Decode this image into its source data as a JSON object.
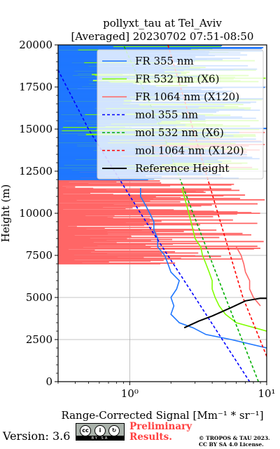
{
  "chart_data": {
    "type": "line",
    "title": "pollyxt_tau at Tel_Aviv",
    "subtitle": "[Averaged] 20230702 07:51-08:50",
    "xlabel": "Range-Corrected Signal [Mm⁻¹ * sr⁻¹]",
    "ylabel": "Height (m)",
    "xscale": "log",
    "xlim": [
      0.3,
      10
    ],
    "ylim": [
      0,
      20000
    ],
    "xticks": [
      {
        "value": 1,
        "label": "10⁰"
      },
      {
        "value": 10,
        "label": "10¹"
      }
    ],
    "yticks": [
      0,
      2500,
      5000,
      7500,
      10000,
      12500,
      15000,
      17500,
      20000
    ],
    "ytick_labels": [
      "0",
      "2500",
      "5000",
      "7500",
      "10000",
      "12500",
      "15000",
      "17500",
      "20000"
    ],
    "grid": true,
    "legend_position": "upper right",
    "series": [
      {
        "name": "FR 355 nm",
        "color": "#1f77ff",
        "style": "solid",
        "x": [
          10.0,
          5.5,
          3.6,
          2.9,
          2.3,
          2.0,
          2.1,
          2.0,
          2.2,
          2.3,
          2.0,
          1.9,
          1.8,
          1.6,
          1.6,
          1.5,
          1.5,
          1.4,
          1.3,
          1.2,
          1.2
        ],
        "y": [
          2000,
          2500,
          2800,
          3200,
          3500,
          4000,
          4500,
          5000,
          5500,
          6000,
          6500,
          7000,
          7500,
          8000,
          8500,
          9000,
          9500,
          10000,
          10500,
          11000,
          11500
        ]
      },
      {
        "name": "FR 532 nm (X6)",
        "color": "#80ff00",
        "style": "solid",
        "x": [
          10.0,
          6.0,
          5.0,
          4.5,
          4.2,
          4.0,
          4.0,
          3.8,
          3.6,
          3.4,
          3.3,
          3.0,
          2.9,
          2.8,
          2.7,
          2.6,
          2.5,
          2.4
        ],
        "y": [
          3000,
          3500,
          4000,
          4500,
          5000,
          5500,
          6000,
          6500,
          7000,
          7500,
          8000,
          8500,
          9000,
          9500,
          10000,
          10500,
          11000,
          11500
        ]
      },
      {
        "name": "FR 1064 nm (X120)",
        "color": "#ff6666",
        "style": "solid",
        "x": [
          9.0,
          8.0,
          7.5,
          7.5,
          7.0,
          6.8,
          6.5,
          6.0
        ],
        "y": [
          4500,
          5000,
          5500,
          6000,
          6500,
          7000,
          7500,
          8000
        ]
      },
      {
        "name": "mol 355 nm",
        "color": "#0000ff",
        "style": "dashed",
        "x": [
          7.5,
          3.0,
          1.2,
          0.5,
          0.3
        ],
        "y": [
          0,
          5000,
          10000,
          15000,
          18500
        ]
      },
      {
        "name": "mol 532 nm (X6)",
        "color": "#00b000",
        "style": "dashed",
        "x": [
          8.7,
          5.0,
          2.9,
          1.7,
          0.9
        ],
        "y": [
          0,
          5000,
          10000,
          15000,
          20000
        ]
      },
      {
        "name": "mol 1064 nm (X120)",
        "color": "#ff0000",
        "style": "dashed",
        "x": [
          10.0,
          6.7,
          4.4,
          2.9,
          1.9
        ],
        "y": [
          1500,
          5000,
          10000,
          15000,
          20000
        ]
      },
      {
        "name": "Reference Height",
        "color": "#000000",
        "style": "solid",
        "x": [
          2.5,
          3.2,
          4.0,
          5.5,
          7.0,
          9.0,
          10.0
        ],
        "y": [
          3200,
          3600,
          3900,
          4400,
          4800,
          4950,
          4950
        ]
      }
    ],
    "noise_bands": [
      {
        "name": "FR 355 nm",
        "color": "#1f77ff",
        "y_min": 12000,
        "y_max": 20000
      },
      {
        "name": "FR 532 nm (X6)",
        "color": "#80ff00",
        "y_min": 12500,
        "y_max": 20000
      },
      {
        "name": "FR 1064 nm (X120)",
        "color": "#ff6666",
        "y_min": 7000,
        "y_max": 15000
      }
    ]
  },
  "footer": {
    "version": "Version: 3.6",
    "cc_label": "BY SA",
    "cc_symbol": "cc",
    "cc_by_symbol": "i",
    "cc_sa_symbol": "↻",
    "preliminary_line1": "Preliminary",
    "preliminary_line2": "Results.",
    "copyright_line1": "© TROPOS & TAU 2023.",
    "copyright_line2": "CC BY SA 4.0 License."
  }
}
